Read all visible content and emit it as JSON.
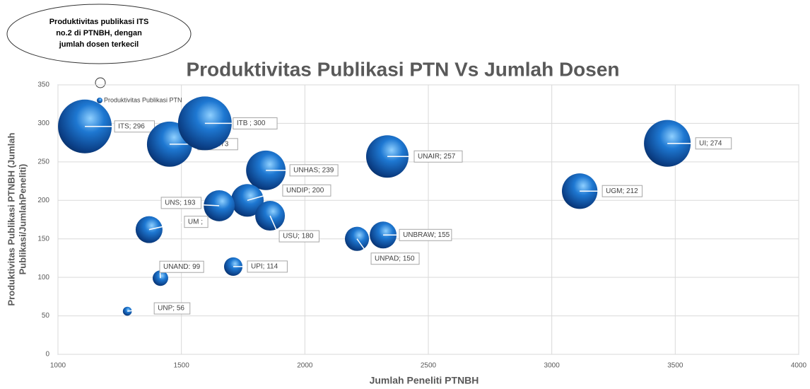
{
  "chart_data": {
    "type": "bubble",
    "title": "Produktivitas Publikasi PTN Vs Jumlah Dosen",
    "xlabel": "Jumlah Peneliti PTNBH",
    "ylabel": [
      "Produktivitas Publikasi PTNBH (Jumlah",
      "Publikasi/JumlahPeneliti)"
    ],
    "annotation": [
      "Produktivitas publikasi ITS",
      "no.2 di PTNBH, dengan",
      "jumlah dosen terkecil"
    ],
    "series": [
      {
        "name": "Produktivitas Publikasi PTN",
        "color": "#1f6fc0",
        "x": [
          1109,
          1452,
          1595,
          1842,
          1767,
          1653,
          1859,
          1369,
          1415,
          1281,
          1710,
          2334,
          2211,
          2317,
          3113,
          3468
        ],
        "values": [
          296,
          273,
          300,
          239,
          200,
          193,
          180,
          162,
          99,
          56,
          114,
          257,
          150,
          155,
          212,
          274
        ],
        "sizes": [
          144,
          102,
          144,
          78,
          53,
          48,
          44,
          36,
          12,
          4,
          17,
          90,
          29,
          36,
          63,
          109
        ],
        "value_labels": [
          "ITS; 296",
          "IPB; 273",
          "ITB ; 300",
          "UNHAS; 239",
          "UNDIP; 200",
          "UNS; 193",
          "USU; 180",
          "UM ;",
          "UNAND: 99",
          "UNP; 56",
          "UPI; 114",
          "UNAIR; 257",
          "UNPAD; 150",
          "UNBRAW; 155",
          "UGM; 212",
          "UI; 274"
        ]
      }
    ],
    "xlim": [
      1000,
      4000
    ],
    "xticks": [
      1000,
      1500,
      2000,
      2500,
      3000,
      3500,
      4000
    ],
    "ylim": [
      0,
      350
    ],
    "yticks": [
      0,
      50,
      100,
      150,
      200,
      250,
      300,
      350
    ],
    "grid": true
  }
}
